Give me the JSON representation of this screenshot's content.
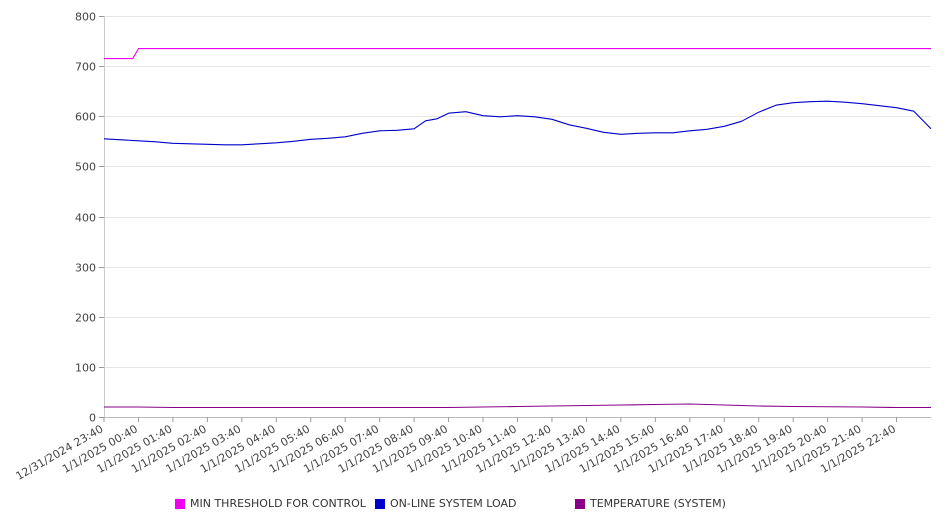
{
  "chart_data": {
    "type": "line",
    "title": "",
    "xlabel": "",
    "ylabel": "",
    "ylim": [
      0,
      800
    ],
    "y_ticks": [
      0,
      100,
      200,
      300,
      400,
      500,
      600,
      700,
      800
    ],
    "x_start": "12/31/2024 23:40",
    "x_end": "1/1/2025 23:40",
    "x_tick_labels": [
      "12/31/2024 23:40",
      "1/1/2025 00:40",
      "1/1/2025 01:40",
      "1/1/2025 02:40",
      "1/1/2025 03:40",
      "1/1/2025 04:40",
      "1/1/2025 05:40",
      "1/1/2025 06:40",
      "1/1/2025 07:40",
      "1/1/2025 08:40",
      "1/1/2025 09:40",
      "1/1/2025 10:40",
      "1/1/2025 11:40",
      "1/1/2025 12:40",
      "1/1/2025 13:40",
      "1/1/2025 14:40",
      "1/1/2025 15:40",
      "1/1/2025 16:40",
      "1/1/2025 17:40",
      "1/1/2025 18:40",
      "1/1/2025 19:40",
      "1/1/2025 20:40",
      "1/1/2025 21:40",
      "1/1/2025 22:40"
    ],
    "grid": "horizontal",
    "legend_position": "bottom",
    "series": [
      {
        "name": "MIN THRESHOLD FOR CONTROL",
        "color": "#ee00ee",
        "points": [
          [
            "12/31/2024 23:40",
            715
          ],
          [
            "1/1/2025 00:30",
            715
          ],
          [
            "1/1/2025 00:40",
            735
          ],
          [
            "1/1/2025 23:40",
            735
          ]
        ]
      },
      {
        "name": "ON-LINE SYSTEM LOAD",
        "color": "#0000cc",
        "points": [
          [
            "12/31/2024 23:40",
            555
          ],
          [
            "1/1/2025 00:10",
            553
          ],
          [
            "1/1/2025 00:40",
            551
          ],
          [
            "1/1/2025 01:10",
            549
          ],
          [
            "1/1/2025 01:40",
            546
          ],
          [
            "1/1/2025 02:10",
            545
          ],
          [
            "1/1/2025 02:40",
            544
          ],
          [
            "1/1/2025 03:10",
            543
          ],
          [
            "1/1/2025 03:40",
            543
          ],
          [
            "1/1/2025 04:10",
            545
          ],
          [
            "1/1/2025 04:40",
            547
          ],
          [
            "1/1/2025 05:10",
            550
          ],
          [
            "1/1/2025 05:40",
            554
          ],
          [
            "1/1/2025 06:10",
            556
          ],
          [
            "1/1/2025 06:40",
            559
          ],
          [
            "1/1/2025 07:10",
            566
          ],
          [
            "1/1/2025 07:40",
            571
          ],
          [
            "1/1/2025 08:10",
            572
          ],
          [
            "1/1/2025 08:40",
            575
          ],
          [
            "1/1/2025 09:00",
            591
          ],
          [
            "1/1/2025 09:20",
            595
          ],
          [
            "1/1/2025 09:40",
            606
          ],
          [
            "1/1/2025 10:10",
            609
          ],
          [
            "1/1/2025 10:40",
            601
          ],
          [
            "1/1/2025 11:10",
            599
          ],
          [
            "1/1/2025 11:40",
            601
          ],
          [
            "1/1/2025 12:10",
            599
          ],
          [
            "1/1/2025 12:40",
            594
          ],
          [
            "1/1/2025 13:10",
            583
          ],
          [
            "1/1/2025 13:40",
            576
          ],
          [
            "1/1/2025 14:10",
            568
          ],
          [
            "1/1/2025 14:40",
            564
          ],
          [
            "1/1/2025 15:10",
            566
          ],
          [
            "1/1/2025 15:40",
            567
          ],
          [
            "1/1/2025 16:10",
            567
          ],
          [
            "1/1/2025 16:40",
            571
          ],
          [
            "1/1/2025 17:10",
            574
          ],
          [
            "1/1/2025 17:40",
            580
          ],
          [
            "1/1/2025 18:10",
            590
          ],
          [
            "1/1/2025 18:40",
            608
          ],
          [
            "1/1/2025 19:10",
            622
          ],
          [
            "1/1/2025 19:40",
            627
          ],
          [
            "1/1/2025 20:10",
            629
          ],
          [
            "1/1/2025 20:40",
            630
          ],
          [
            "1/1/2025 21:10",
            628
          ],
          [
            "1/1/2025 21:40",
            625
          ],
          [
            "1/1/2025 22:10",
            621
          ],
          [
            "1/1/2025 22:40",
            617
          ],
          [
            "1/1/2025 23:10",
            610
          ],
          [
            "1/1/2025 23:40",
            575
          ]
        ]
      },
      {
        "name": "TEMPERATURE (SYSTEM)",
        "color": "#880088",
        "points": [
          [
            "12/31/2024 23:40",
            20
          ],
          [
            "1/1/2025 00:40",
            20
          ],
          [
            "1/1/2025 01:40",
            19
          ],
          [
            "1/1/2025 06:40",
            19
          ],
          [
            "1/1/2025 09:40",
            19
          ],
          [
            "1/1/2025 10:40",
            20
          ],
          [
            "1/1/2025 11:40",
            21
          ],
          [
            "1/1/2025 12:40",
            22
          ],
          [
            "1/1/2025 13:40",
            23
          ],
          [
            "1/1/2025 14:40",
            24
          ],
          [
            "1/1/2025 15:40",
            25
          ],
          [
            "1/1/2025 16:40",
            26
          ],
          [
            "1/1/2025 17:40",
            24
          ],
          [
            "1/1/2025 18:40",
            22
          ],
          [
            "1/1/2025 19:40",
            21
          ],
          [
            "1/1/2025 21:40",
            20
          ],
          [
            "1/1/2025 22:40",
            19
          ],
          [
            "1/1/2025 23:40",
            19
          ]
        ]
      }
    ]
  },
  "legend": {
    "items": [
      {
        "label": "MIN THRESHOLD FOR CONTROL",
        "color": "#ee00ee"
      },
      {
        "label": "ON-LINE SYSTEM LOAD",
        "color": "#0000cc"
      },
      {
        "label": "TEMPERATURE (SYSTEM)",
        "color": "#880088"
      }
    ]
  }
}
